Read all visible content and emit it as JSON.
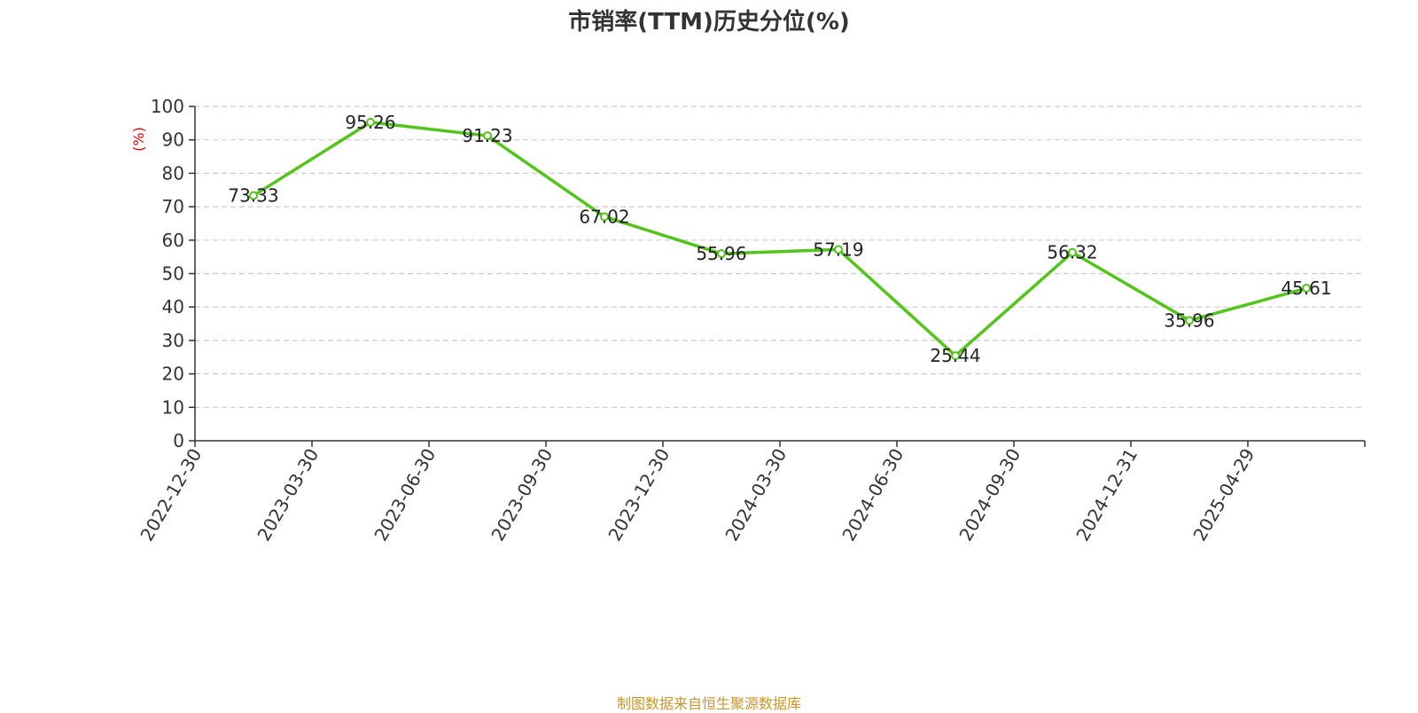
{
  "title": "市销率(TTM)历史分位(%)",
  "footer": "制图数据来自恒生聚源数据库",
  "colors": {
    "line": "#52c41a",
    "axis": "#333333",
    "grid": "#cccccc",
    "unit": "#e00000",
    "footer": "#c8962c"
  },
  "chart_data": {
    "type": "line",
    "title": "市销率(TTM)历史分位(%)",
    "xlabel": "",
    "ylabel": "(%)",
    "ylim": [
      0,
      100
    ],
    "yticks": [
      0,
      10,
      20,
      30,
      40,
      50,
      60,
      70,
      80,
      90,
      100
    ],
    "grid": true,
    "categories": [
      "2022-12-30",
      "2023-03-30",
      "2023-06-30",
      "2023-09-30",
      "2023-12-30",
      "2024-03-30",
      "2024-06-30",
      "2024-09-30",
      "2024-12-31",
      "2025-04-29"
    ],
    "series": [
      {
        "values": [
          73.33,
          95.26,
          91.23,
          67.02,
          55.96,
          57.19,
          25.44,
          56.32,
          35.96,
          45.61
        ]
      }
    ],
    "data_labels": [
      "73.33",
      "95.26",
      "91.23",
      "67.02",
      "55.96",
      "57.19",
      "25.44",
      "56.32",
      "35.96",
      "45.61"
    ]
  }
}
